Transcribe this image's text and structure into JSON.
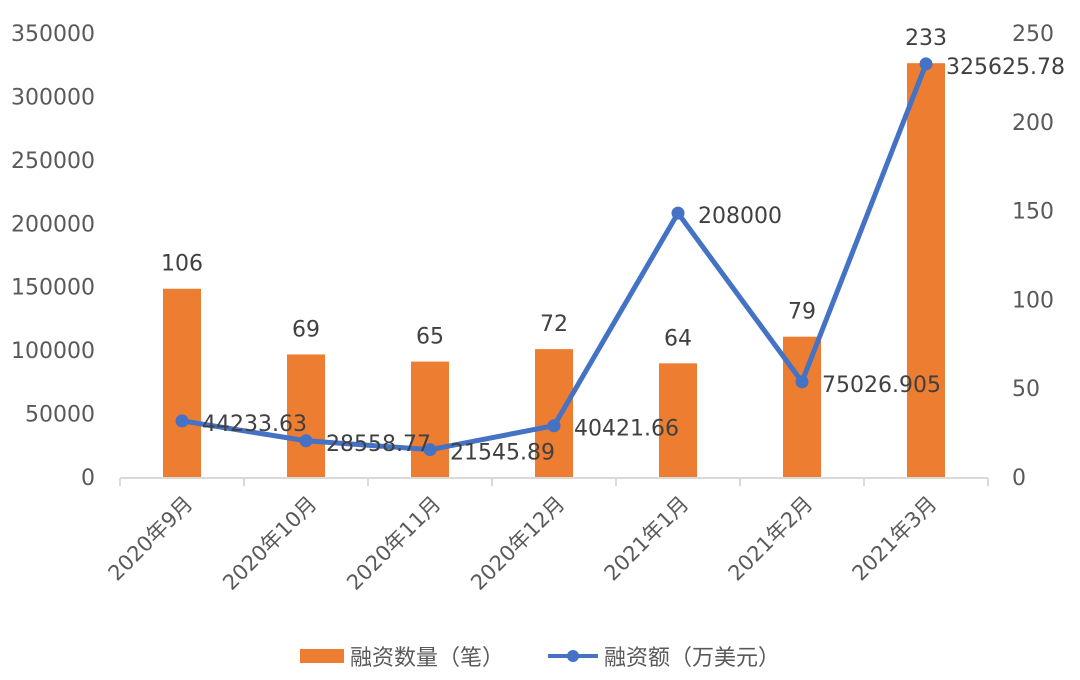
{
  "chart_data": {
    "type": "bar+line",
    "title": "",
    "categories": [
      "2020年9月",
      "2020年10月",
      "2020年11月",
      "2020年12月",
      "2021年1月",
      "2021年2月",
      "2021年3月"
    ],
    "series": [
      {
        "name": "融资数量（笔）",
        "type": "bar",
        "axis": "right",
        "color": "#ED7D31",
        "values": [
          106,
          69,
          65,
          72,
          64,
          79,
          233
        ]
      },
      {
        "name": "融资额（万美元）",
        "type": "line",
        "axis": "left",
        "color": "#4472C4",
        "values": [
          44233.63,
          28558.77,
          21545.89,
          40421.66,
          208000,
          75026.905,
          325625.78
        ]
      }
    ],
    "left_axis": {
      "ylim": [
        0,
        350000
      ],
      "ticks": [
        "0",
        "50000",
        "100000",
        "150000",
        "200000",
        "250000",
        "300000",
        "350000"
      ]
    },
    "right_axis": {
      "ylim": [
        0,
        250
      ],
      "ticks": [
        "0",
        "50",
        "100",
        "150",
        "200",
        "250"
      ]
    },
    "bar_labels": [
      "106",
      "69",
      "65",
      "72",
      "64",
      "79",
      "233"
    ],
    "line_labels": [
      "44233.63",
      "28558.77",
      "21545.89",
      "40421.66",
      "208000",
      "75026.905",
      "325625.78"
    ],
    "grid": false,
    "legend_position": "bottom"
  },
  "legend": {
    "bar_label": "融资数量（笔）",
    "line_label": "融资额（万美元）"
  }
}
